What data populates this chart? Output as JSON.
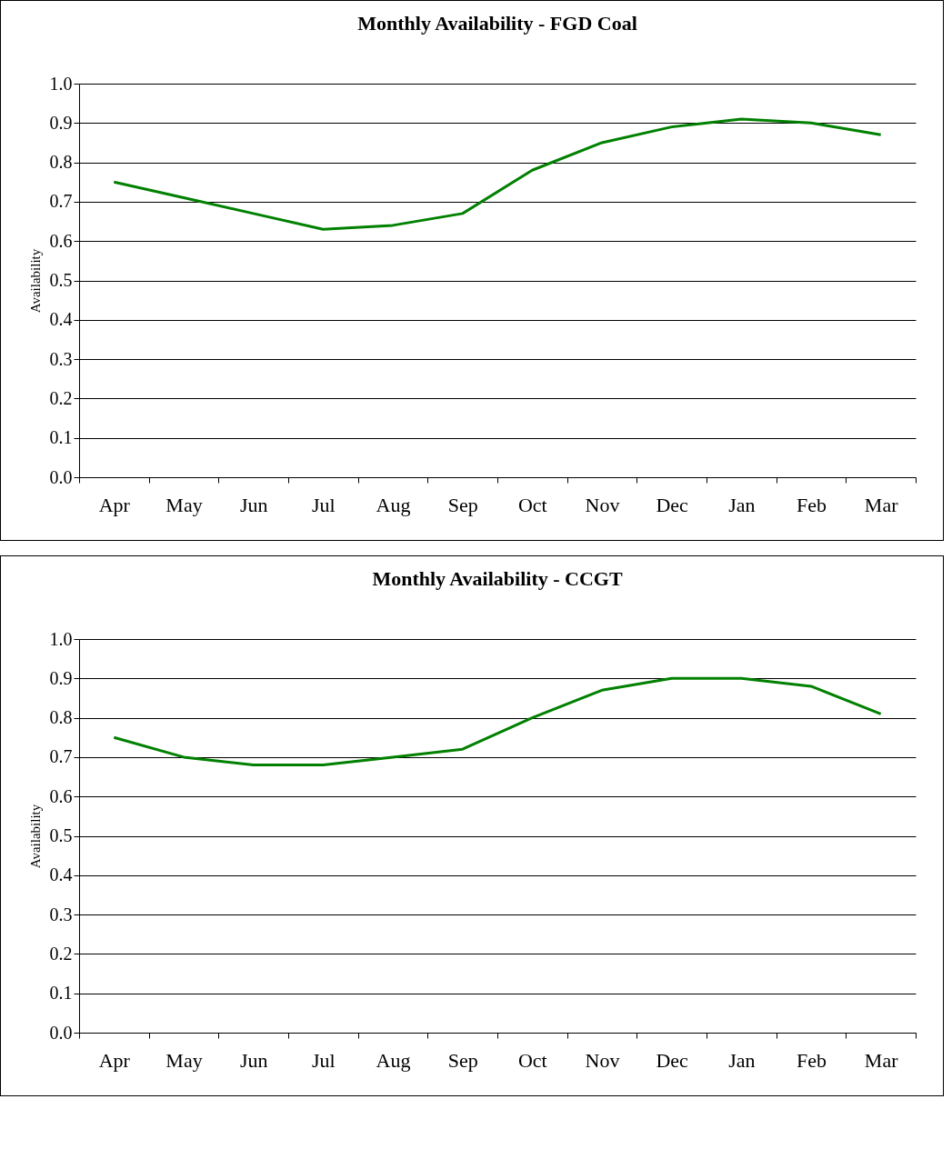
{
  "chart_data": [
    {
      "type": "line",
      "title": "Monthly Availability - FGD Coal",
      "ylabel": "Availability",
      "categories": [
        "Apr",
        "May",
        "Jun",
        "Jul",
        "Aug",
        "Sep",
        "Oct",
        "Nov",
        "Dec",
        "Jan",
        "Feb",
        "Mar"
      ],
      "series": [
        {
          "color": "#008000",
          "values": [
            0.75,
            0.71,
            0.67,
            0.63,
            0.64,
            0.67,
            0.78,
            0.85,
            0.89,
            0.91,
            0.9,
            0.87
          ]
        }
      ],
      "ylim": [
        0,
        1
      ],
      "yticks": [
        {
          "value": 0,
          "label": "0.0"
        },
        {
          "value": 0.1,
          "label": "0.1"
        },
        {
          "value": 0.2,
          "label": "0.2"
        },
        {
          "value": 0.3,
          "label": "0.3"
        },
        {
          "value": 0.4,
          "label": "0.4"
        },
        {
          "value": 0.5,
          "label": "0.5"
        },
        {
          "value": 0.6,
          "label": "0.6"
        },
        {
          "value": 0.7,
          "label": "0.7"
        },
        {
          "value": 0.8,
          "label": "0.8"
        },
        {
          "value": 0.9,
          "label": "0.9"
        },
        {
          "value": 1,
          "label": "1.0"
        }
      ],
      "grid": "y"
    },
    {
      "type": "line",
      "title": "Monthly Availability - CCGT",
      "ylabel": "Availability",
      "categories": [
        "Apr",
        "May",
        "Jun",
        "Jul",
        "Aug",
        "Sep",
        "Oct",
        "Nov",
        "Dec",
        "Jan",
        "Feb",
        "Mar"
      ],
      "series": [
        {
          "color": "#008000",
          "values": [
            0.75,
            0.7,
            0.68,
            0.68,
            0.7,
            0.72,
            0.8,
            0.87,
            0.9,
            0.9,
            0.88,
            0.81
          ]
        }
      ],
      "ylim": [
        0,
        1
      ],
      "yticks": [
        {
          "value": 0,
          "label": "0.0"
        },
        {
          "value": 0.1,
          "label": "0.1"
        },
        {
          "value": 0.2,
          "label": "0.2"
        },
        {
          "value": 0.3,
          "label": "0.3"
        },
        {
          "value": 0.4,
          "label": "0.4"
        },
        {
          "value": 0.5,
          "label": "0.5"
        },
        {
          "value": 0.6,
          "label": "0.6"
        },
        {
          "value": 0.7,
          "label": "0.7"
        },
        {
          "value": 0.8,
          "label": "0.8"
        },
        {
          "value": 0.9,
          "label": "0.9"
        },
        {
          "value": 1,
          "label": "1.0"
        }
      ],
      "grid": "y"
    }
  ]
}
